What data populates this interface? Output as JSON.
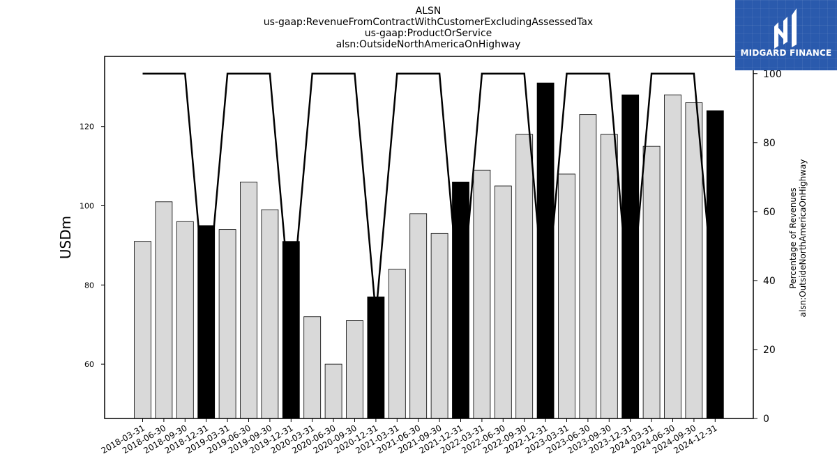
{
  "chart_data": {
    "type": "bar",
    "title": [
      "ALSN",
      "us-gaap:RevenueFromContractWithCustomerExcludingAssessedTax",
      "us-gaap:ProductOrService",
      "alsn:OutsideNorthAmericaOnHighway"
    ],
    "ylabel": "USDm",
    "y2label": [
      "Percentage of Revenues",
      "alsn:OutsideNorthAmericaOnHighway"
    ],
    "ylim": [
      46.3,
      137.7
    ],
    "y2lim": [
      0,
      105
    ],
    "yticks": [
      60,
      80,
      100,
      120
    ],
    "y2ticks": [
      0,
      20,
      40,
      60,
      80,
      100
    ],
    "categories": [
      "2018-03-31",
      "2018-06-30",
      "2018-09-30",
      "2018-12-31",
      "2019-03-31",
      "2019-06-30",
      "2019-09-30",
      "2019-12-31",
      "2020-03-31",
      "2020-06-30",
      "2020-09-30",
      "2020-12-31",
      "2021-03-31",
      "2021-06-30",
      "2021-09-30",
      "2021-12-31",
      "2022-03-31",
      "2022-06-30",
      "2022-09-30",
      "2022-12-31",
      "2023-03-31",
      "2023-06-30",
      "2023-09-30",
      "2023-12-31",
      "2024-03-31",
      "2024-06-30",
      "2024-09-30",
      "2024-12-31"
    ],
    "series": [
      {
        "values": [
          91,
          101,
          96,
          95,
          94,
          106,
          99,
          91,
          72,
          60,
          71,
          77,
          84,
          98,
          93,
          106,
          109,
          105,
          118,
          131,
          108,
          123,
          118,
          128,
          115,
          128,
          126,
          124
        ],
        "highlight": [
          false,
          false,
          false,
          true,
          false,
          false,
          false,
          true,
          false,
          false,
          false,
          true,
          false,
          false,
          false,
          true,
          false,
          false,
          false,
          true,
          false,
          false,
          false,
          true,
          false,
          false,
          false,
          true
        ]
      },
      {
        "axis": "right",
        "type": "line",
        "values": [
          100,
          100,
          100,
          30,
          100,
          100,
          100,
          30,
          100,
          100,
          100,
          30,
          100,
          100,
          100,
          30,
          100,
          100,
          100,
          30,
          100,
          100,
          100,
          30,
          100,
          100,
          100,
          30
        ]
      }
    ],
    "colors": {
      "bar": "#d9d9d9",
      "bar_highlight": "#000000",
      "line": "#000000"
    }
  },
  "logo": {
    "text": "MIDGARD FINANCE",
    "background": "#2a5aad"
  }
}
